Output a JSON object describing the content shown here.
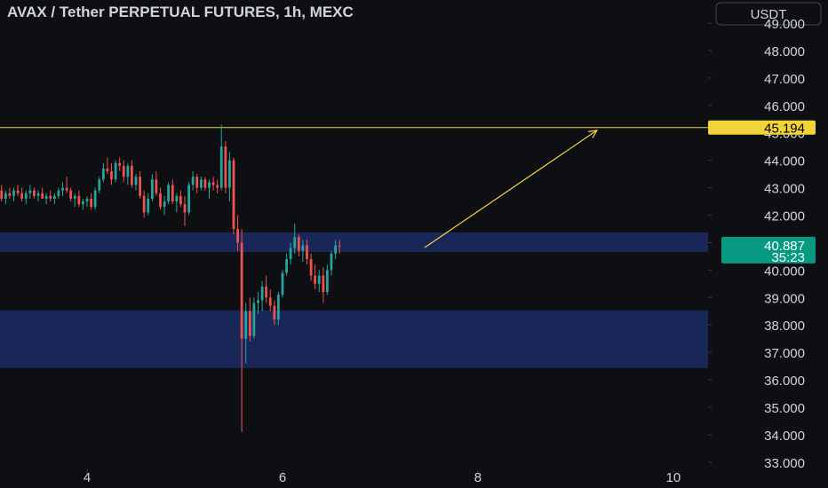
{
  "chart_data": {
    "type": "candlestick",
    "title": "AVAX / Tether PERPETUAL FUTURES, 1h, MEXC",
    "currency": "USDT",
    "x": [
      3.125,
      3.167,
      3.208,
      3.25,
      3.292,
      3.333,
      3.375,
      3.417,
      3.458,
      3.5,
      3.542,
      3.583,
      3.625,
      3.667,
      3.708,
      3.75,
      3.792,
      3.833,
      3.875,
      3.917,
      3.958,
      4,
      4.042,
      4.083,
      4.125,
      4.167,
      4.208,
      4.25,
      4.292,
      4.333,
      4.375,
      4.417,
      4.458,
      4.5,
      4.542,
      4.583,
      4.625,
      4.667,
      4.708,
      4.75,
      4.792,
      4.833,
      4.875,
      4.917,
      4.958,
      5,
      5.042,
      5.083,
      5.125,
      5.167,
      5.208,
      5.25,
      5.292,
      5.333,
      5.375,
      5.417,
      5.458,
      5.5,
      5.542,
      5.583,
      5.625,
      5.667,
      5.708,
      5.75,
      5.792,
      5.833,
      5.875,
      5.917,
      5.958,
      6,
      6.042,
      6.083,
      6.125,
      6.167,
      6.208,
      6.25,
      6.292,
      6.333,
      6.375,
      6.417,
      6.458,
      6.5,
      6.542,
      6.583
    ],
    "open": [
      42.9,
      42.6,
      42.8,
      42.7,
      42.9,
      42.8,
      42.6,
      42.8,
      42.9,
      42.7,
      42.8,
      42.6,
      42.7,
      42.6,
      42.7,
      42.9,
      43.0,
      42.9,
      42.6,
      42.7,
      42.4,
      42.5,
      42.6,
      42.3,
      42.9,
      43.3,
      43.7,
      43.6,
      43.3,
      43.9,
      43.8,
      43.4,
      43.8,
      43.1,
      43.4,
      42.7,
      42.1,
      42.6,
      43.3,
      42.8,
      42.3,
      42.5,
      43.1,
      42.5,
      42.7,
      42.4,
      42.1,
      43.1,
      43.4,
      43.0,
      43.3,
      43.0,
      43.2,
      43.1,
      43.0,
      44.5,
      43.0,
      44.0,
      41.5,
      41.0,
      37.5,
      38.5,
      37.6,
      38.8,
      38.9,
      39.4,
      39.0,
      38.7,
      38.2,
      39.1,
      39.9,
      40.4,
      40.8,
      41.2,
      40.7,
      40.9,
      40.4,
      39.8,
      39.5,
      39.8,
      39.2,
      40.0,
      40.6,
      40.9
    ],
    "high": [
      43.1,
      42.9,
      43.0,
      43.0,
      43.1,
      43.0,
      42.9,
      43.1,
      43.0,
      42.9,
      43.0,
      42.8,
      42.9,
      42.8,
      43.0,
      43.2,
      43.4,
      43.0,
      42.8,
      42.9,
      42.6,
      42.7,
      42.8,
      43.0,
      43.4,
      43.9,
      44.1,
      43.9,
      44.0,
      44.1,
      44.0,
      43.9,
      44.0,
      43.5,
      43.6,
      42.9,
      42.8,
      43.5,
      43.6,
      43.0,
      42.7,
      43.2,
      43.3,
      42.8,
      42.9,
      42.7,
      43.2,
      43.6,
      43.5,
      43.4,
      43.4,
      43.3,
      43.4,
      43.3,
      45.3,
      44.7,
      44.3,
      44.1,
      42.0,
      41.5,
      38.8,
      39.0,
      39.0,
      39.2,
      39.6,
      39.8,
      39.3,
      38.9,
      39.2,
      40.0,
      40.6,
      41.0,
      41.7,
      41.3,
      41.1,
      41.1,
      40.6,
      40.2,
      40.0,
      40.1,
      40.2,
      40.7,
      41.1,
      41.1
    ],
    "low": [
      42.5,
      42.4,
      42.6,
      42.5,
      42.7,
      42.5,
      42.4,
      42.6,
      42.6,
      42.5,
      42.6,
      42.4,
      42.5,
      42.4,
      42.6,
      42.7,
      42.8,
      42.5,
      42.3,
      42.3,
      42.2,
      42.3,
      42.2,
      42.2,
      42.8,
      43.2,
      43.5,
      43.1,
      43.2,
      43.6,
      43.2,
      43.1,
      43.0,
      42.9,
      42.6,
      41.9,
      42.0,
      42.5,
      42.7,
      42.2,
      42.0,
      42.4,
      42.4,
      42.1,
      42.3,
      41.6,
      42.0,
      42.9,
      42.8,
      42.9,
      42.9,
      42.6,
      42.9,
      42.8,
      42.9,
      42.8,
      42.5,
      41.3,
      40.7,
      34.1,
      36.6,
      37.4,
      37.5,
      38.4,
      38.5,
      38.8,
      38.5,
      38.0,
      38.0,
      39.0,
      39.8,
      40.2,
      40.6,
      40.5,
      40.3,
      40.2,
      39.6,
      39.3,
      39.2,
      38.8,
      39.1,
      39.8,
      40.4,
      40.6
    ],
    "close": [
      42.6,
      42.8,
      42.7,
      42.9,
      42.8,
      42.6,
      42.8,
      42.9,
      42.7,
      42.8,
      42.6,
      42.7,
      42.6,
      42.7,
      42.9,
      43.0,
      42.9,
      42.6,
      42.7,
      42.4,
      42.5,
      42.6,
      42.3,
      42.9,
      43.3,
      43.7,
      43.6,
      43.3,
      43.9,
      43.8,
      43.4,
      43.8,
      43.1,
      43.4,
      42.7,
      42.1,
      42.6,
      43.3,
      42.8,
      42.3,
      42.5,
      43.1,
      42.5,
      42.7,
      42.4,
      42.1,
      43.1,
      43.4,
      43.0,
      43.3,
      43.0,
      43.2,
      43.1,
      43.0,
      44.5,
      43.0,
      44.0,
      41.5,
      41.0,
      37.5,
      38.5,
      37.6,
      38.8,
      38.9,
      39.4,
      39.0,
      38.7,
      38.2,
      39.1,
      39.9,
      40.4,
      40.8,
      41.2,
      40.7,
      40.9,
      40.4,
      39.8,
      39.5,
      39.8,
      39.2,
      40.0,
      40.6,
      40.9,
      40.887
    ],
    "up_color": "#26a69a",
    "down_color": "#ef5350",
    "xlim": [
      3.109,
      10.355
    ],
    "ylim": [
      32.77,
      49.84
    ],
    "xticks": [
      4,
      6,
      8,
      10
    ],
    "yticks": [
      {
        "value": 33,
        "label": "33.000"
      },
      {
        "value": 34,
        "label": "34.000"
      },
      {
        "value": 35,
        "label": "35.000"
      },
      {
        "value": 36,
        "label": "36.000"
      },
      {
        "value": 37,
        "label": "37.000"
      },
      {
        "value": 38,
        "label": "38.000"
      },
      {
        "value": 39,
        "label": "39.000"
      },
      {
        "value": 40,
        "label": "40.000"
      },
      {
        "value": 41,
        "label": "41.000"
      },
      {
        "value": 42,
        "label": "42.000"
      },
      {
        "value": 43,
        "label": "43.000"
      },
      {
        "value": 44,
        "label": "44.000"
      },
      {
        "value": 45,
        "label": "45.000"
      },
      {
        "value": 46,
        "label": "46.000"
      },
      {
        "value": 47,
        "label": "47.000"
      },
      {
        "value": 48,
        "label": "48.000"
      },
      {
        "value": 49,
        "label": "49.000"
      }
    ],
    "zones": [
      {
        "low": 40.66,
        "high": 41.37,
        "color": "#1b2a60"
      },
      {
        "low": 36.43,
        "high": 38.53,
        "color": "#1b2a60"
      }
    ],
    "hline": {
      "value": 45.194,
      "color": "#f0d43a"
    },
    "trend_line": {
      "x": [
        7.455,
        9.218
      ],
      "y": [
        40.82,
        45.09
      ],
      "color": "#f0d43a"
    },
    "last_price_color": "#089981",
    "countdown": "35:23"
  }
}
